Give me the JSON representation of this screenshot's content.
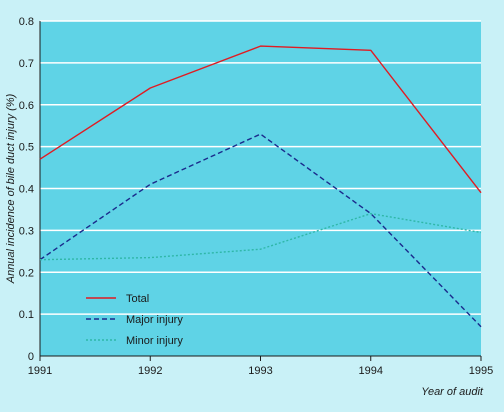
{
  "chart_data": {
    "type": "line",
    "title": "",
    "xlabel": "Year of audit",
    "ylabel": "Annual incidence of bile duct injury (%)",
    "x": [
      "1991",
      "1992",
      "1993",
      "1994",
      "1995"
    ],
    "yticks": [
      "0",
      "0.1",
      "0.2",
      "0.3",
      "0.4",
      "0.5",
      "0.6",
      "0.7",
      "0.8"
    ],
    "ylim": [
      0,
      0.8
    ],
    "grid": "horizontal",
    "legend_position": "bottom-left",
    "series": [
      {
        "name": "Total",
        "values": [
          0.47,
          0.64,
          0.74,
          0.73,
          0.39
        ],
        "color": "#e11b22",
        "style": "solid"
      },
      {
        "name": "Major injury",
        "values": [
          0.23,
          0.41,
          0.53,
          0.34,
          0.07
        ],
        "color": "#1a2a8c",
        "style": "dashed"
      },
      {
        "name": "Minor injury",
        "values": [
          0.23,
          0.235,
          0.255,
          0.34,
          0.295
        ],
        "color": "#2fb7a8",
        "style": "dotted"
      }
    ],
    "colors": {
      "plot_background": "#5fd3e6",
      "page_background": "#c9f1f7",
      "grid": "#ffffff"
    }
  }
}
